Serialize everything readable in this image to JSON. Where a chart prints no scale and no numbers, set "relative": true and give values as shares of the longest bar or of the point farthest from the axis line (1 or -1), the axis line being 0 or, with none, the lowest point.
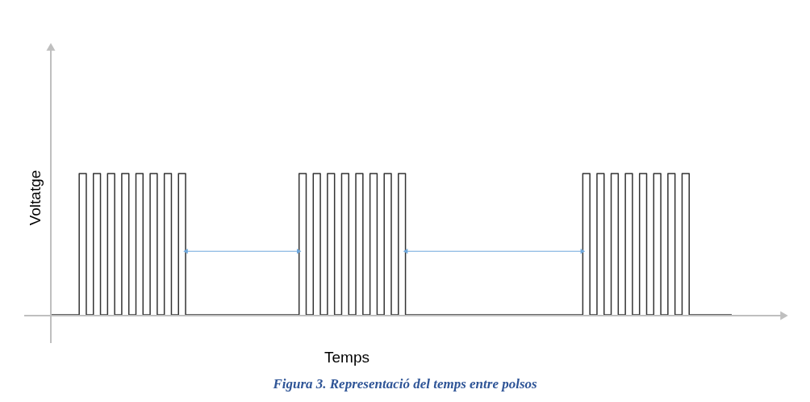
{
  "chart_data": {
    "type": "step",
    "relative": true,
    "xlabel": "Temps",
    "ylabel": "Voltatge",
    "annotations": [
      "Figura 3. Representació del temps entre polsos"
    ],
    "color": "#333333",
    "categories": [
      null,
      null,
      null,
      null,
      null,
      null,
      null,
      null,
      null,
      null,
      null,
      null,
      null,
      null,
      null,
      null,
      null,
      null,
      null,
      null,
      null,
      null,
      null,
      null,
      null,
      null,
      null,
      null,
      null,
      null,
      null,
      null,
      null,
      null,
      null,
      null,
      null,
      null,
      null,
      null,
      null,
      null,
      null,
      null,
      null,
      null,
      null,
      null,
      null,
      null,
      null,
      null,
      null,
      null,
      null,
      null,
      null,
      null,
      null,
      null,
      null,
      null,
      null,
      null,
      null,
      null,
      null,
      null,
      null,
      null,
      null,
      null,
      null,
      null,
      null,
      null,
      null,
      null,
      null,
      null,
      null,
      null,
      null,
      null,
      null,
      null,
      null,
      null,
      null,
      null,
      null,
      null,
      null,
      null,
      null,
      null,
      null
    ],
    "values": [
      0,
      0,
      0,
      0,
      1,
      0,
      1,
      0,
      1,
      0,
      1,
      0,
      1,
      0,
      1,
      0,
      1,
      0,
      1,
      0,
      0,
      0,
      0,
      0,
      0,
      0,
      0,
      0,
      0,
      0,
      0,
      0,
      0,
      0,
      0,
      1,
      0,
      1,
      0,
      1,
      0,
      1,
      0,
      1,
      0,
      1,
      0,
      1,
      0,
      1,
      0,
      0,
      0,
      0,
      0,
      0,
      0,
      0,
      0,
      0,
      0,
      0,
      0,
      0,
      0,
      0,
      0,
      0,
      0,
      0,
      0,
      0,
      0,
      0,
      0,
      1,
      0,
      1,
      0,
      1,
      0,
      1,
      0,
      1,
      0,
      1,
      0,
      1,
      0,
      1,
      0,
      0,
      0,
      0,
      0,
      0,
      0
    ]
  }
}
